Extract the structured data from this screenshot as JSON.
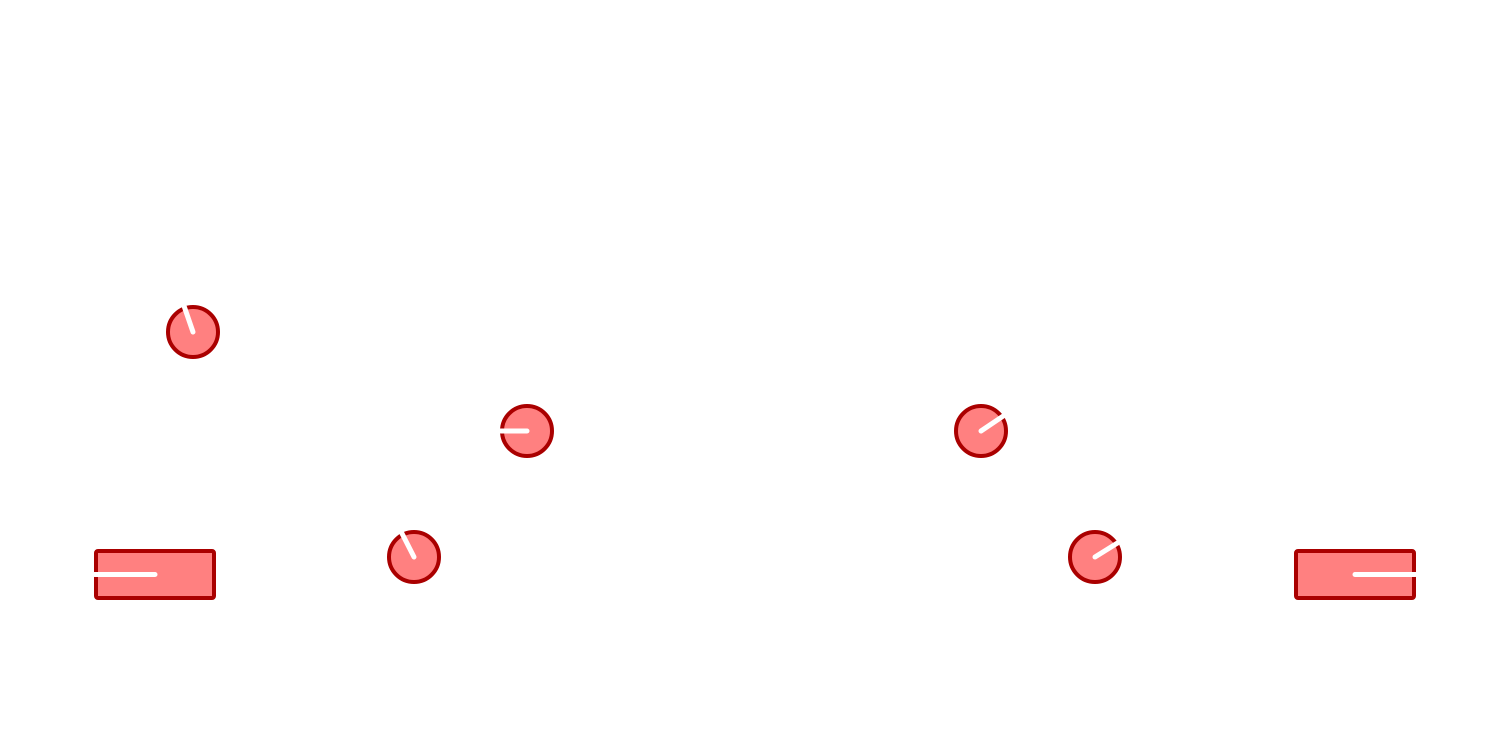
{
  "scene": {
    "background": "#ffffff",
    "style": {
      "fill": "#ff8080",
      "stroke": "#aa0000",
      "indicator": "#ffffff"
    },
    "bodies": [
      {
        "name": "circle-body-1",
        "shape": "circle",
        "angle_deg": 251
      },
      {
        "name": "circle-body-2",
        "shape": "circle",
        "angle_deg": 180
      },
      {
        "name": "circle-body-3",
        "shape": "circle",
        "angle_deg": 243
      },
      {
        "name": "circle-body-4",
        "shape": "circle",
        "angle_deg": 326
      },
      {
        "name": "circle-body-5",
        "shape": "circle",
        "angle_deg": 328
      },
      {
        "name": "box-body-left",
        "shape": "box",
        "angle_deg": 180
      },
      {
        "name": "box-body-right",
        "shape": "box",
        "angle_deg": 0
      }
    ]
  }
}
